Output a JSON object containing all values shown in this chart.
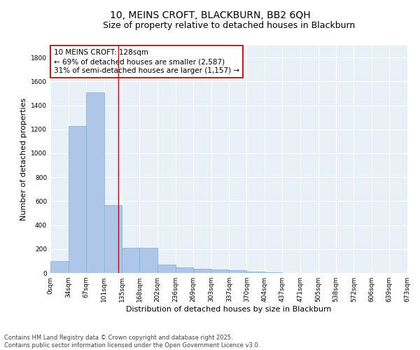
{
  "title": "10, MEINS CROFT, BLACKBURN, BB2 6QH",
  "subtitle": "Size of property relative to detached houses in Blackburn",
  "xlabel": "Distribution of detached houses by size in Blackburn",
  "ylabel": "Number of detached properties",
  "bar_color": "#aec6e8",
  "bar_edge_color": "#7aafd4",
  "background_color": "#e8f0f8",
  "grid_color": "#ffffff",
  "annotation_box_color": "#cc0000",
  "annotation_text": "10 MEINS CROFT: 128sqm\n← 69% of detached houses are smaller (2,587)\n31% of semi-detached houses are larger (1,157) →",
  "redline_x": 128,
  "bins": [
    0,
    34,
    67,
    101,
    135,
    168,
    202,
    236,
    269,
    303,
    337,
    370,
    404,
    437,
    471,
    505,
    538,
    572,
    606,
    639,
    673
  ],
  "bar_heights": [
    100,
    1230,
    1510,
    565,
    210,
    210,
    70,
    47,
    38,
    30,
    22,
    10,
    5,
    0,
    0,
    0,
    0,
    0,
    0,
    0
  ],
  "ylim": [
    0,
    1900
  ],
  "yticks": [
    0,
    200,
    400,
    600,
    800,
    1000,
    1200,
    1400,
    1600,
    1800
  ],
  "footer_text": "Contains HM Land Registry data © Crown copyright and database right 2025.\nContains public sector information licensed under the Open Government Licence v3.0.",
  "title_fontsize": 10,
  "subtitle_fontsize": 9,
  "xlabel_fontsize": 8,
  "ylabel_fontsize": 8,
  "tick_fontsize": 6.5,
  "annotation_fontsize": 7.5,
  "footer_fontsize": 6
}
